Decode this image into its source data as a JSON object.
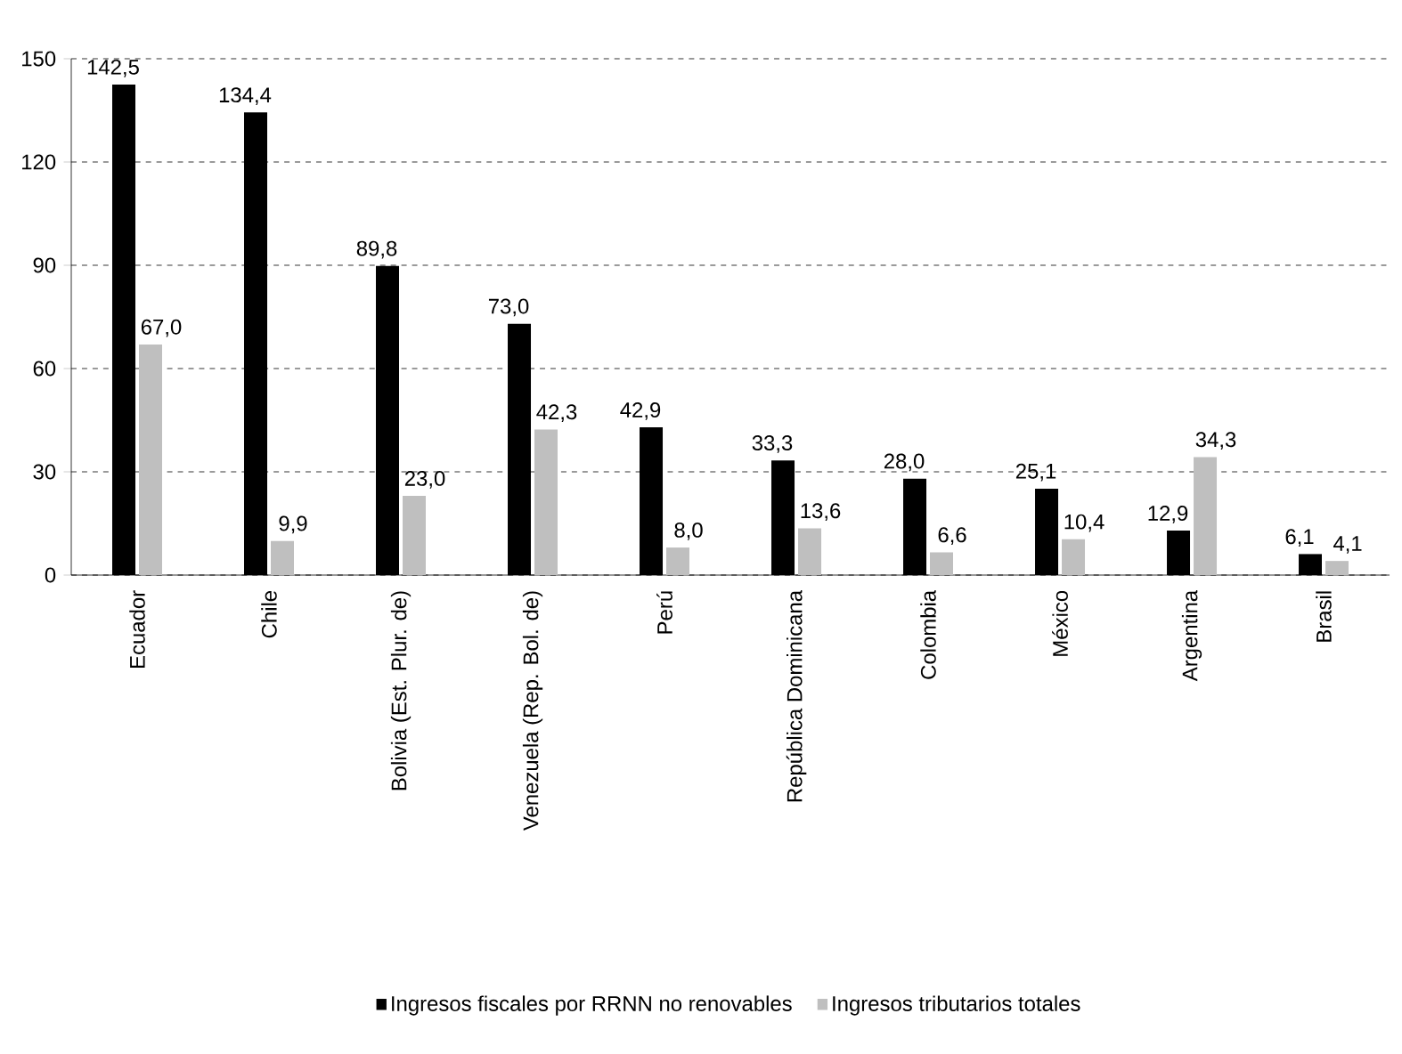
{
  "chart_data": {
    "type": "bar",
    "categories": [
      "Ecuador",
      "Chile",
      "Bolivia (Est. Plur. de)",
      "Venezuela (Rep. Bol. de)",
      "Perú",
      "República Dominicana",
      "Colombia",
      "México",
      "Argentina",
      "Brasil"
    ],
    "series": [
      {
        "name": "Ingresos fiscales por RRNN no renovables",
        "color": "#000000",
        "values": [
          142.5,
          134.4,
          89.8,
          73.0,
          42.9,
          33.3,
          28.0,
          25.1,
          12.9,
          6.1
        ],
        "value_labels": [
          "142,5",
          "134,4",
          "89,8",
          "73,0",
          "42,9",
          "33,3",
          "28,0",
          "25,1",
          "12,9",
          "6,1"
        ]
      },
      {
        "name": "Ingresos tributarios totales",
        "color": "#bfbfbf",
        "values": [
          67.0,
          9.9,
          23.0,
          42.3,
          8.0,
          13.6,
          6.6,
          10.4,
          34.3,
          4.1
        ],
        "value_labels": [
          "67,0",
          "9,9",
          "23,0",
          "42,3",
          "8,0",
          "13,6",
          "6,6",
          "10,4",
          "34,3",
          "4,1"
        ]
      }
    ],
    "ylim": [
      0,
      150
    ],
    "yticks": [
      0,
      30,
      60,
      90,
      120,
      150
    ],
    "grid": "y",
    "legend": "bottom"
  }
}
